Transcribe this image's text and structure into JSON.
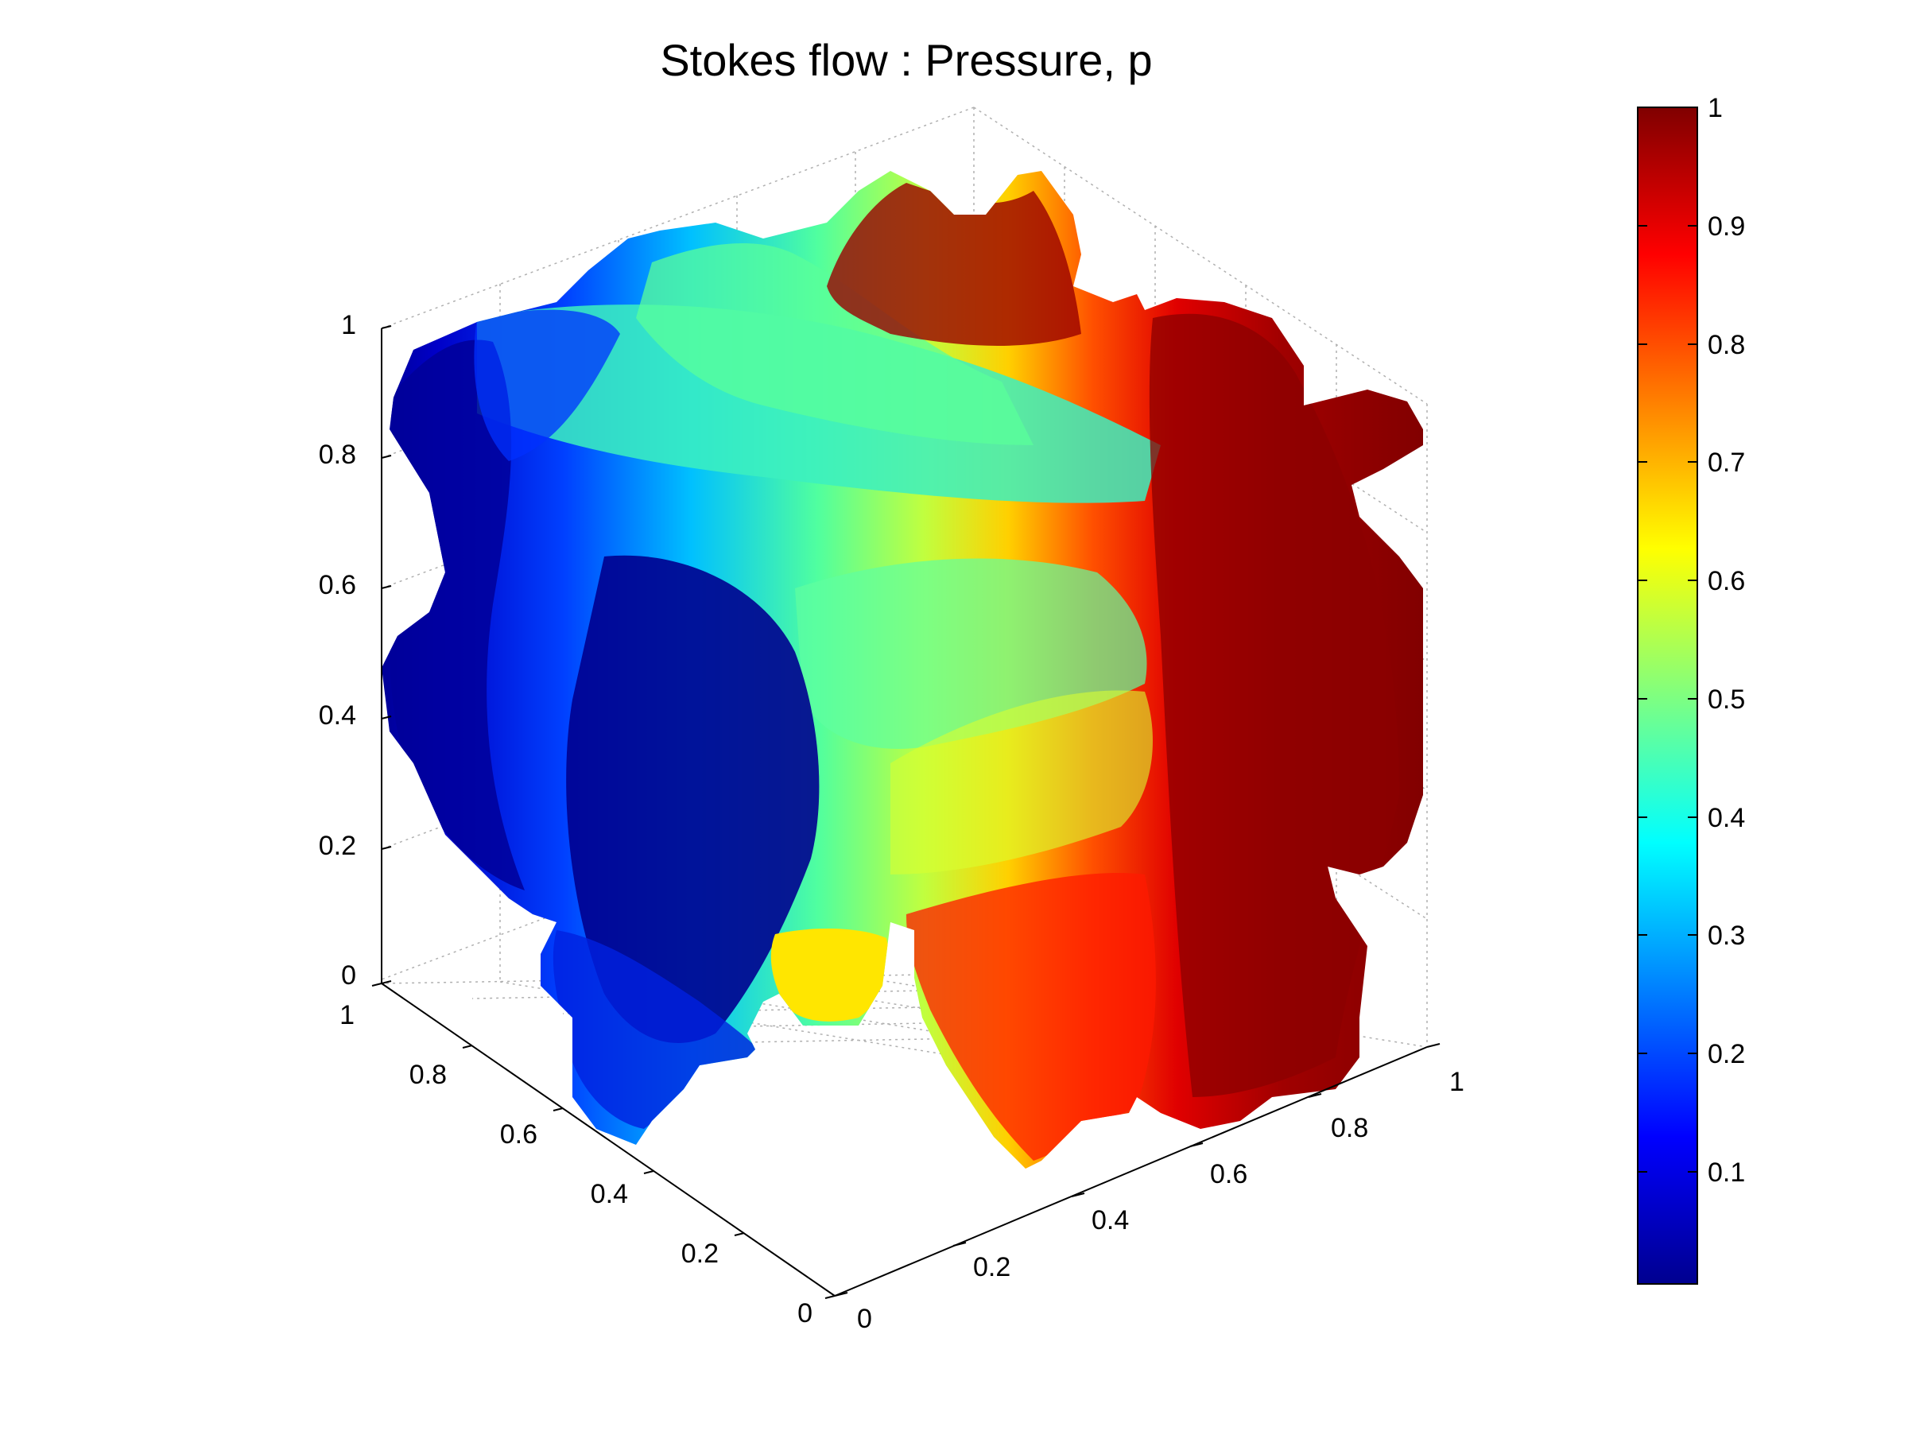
{
  "chart_data": {
    "type": "surface3d",
    "title": "Stokes flow : Pressure, p",
    "xlabel": "",
    "ylabel": "",
    "zlabel": "",
    "xlim": [
      0,
      1
    ],
    "ylim": [
      0,
      1
    ],
    "zlim": [
      0,
      1
    ],
    "x_ticks": [
      "0",
      "0.2",
      "0.4",
      "0.6",
      "0.8",
      "1"
    ],
    "y_ticks": [
      "0",
      "0.2",
      "0.4",
      "0.6",
      "0.8",
      "1"
    ],
    "z_ticks": [
      "0",
      "0.2",
      "0.4",
      "0.6",
      "0.8",
      "1"
    ],
    "grid": true,
    "colormap": "jet",
    "colorbar": {
      "ticks": [
        "0.1",
        "0.2",
        "0.3",
        "0.4",
        "0.5",
        "0.6",
        "0.7",
        "0.8",
        "0.9",
        "1"
      ],
      "range": [
        0.005,
        1
      ],
      "placement": "right"
    },
    "pressure_regions": [
      {
        "y": 0.0,
        "z": 0.55,
        "p": 0.02
      },
      {
        "y": 0.0,
        "z": 0.25,
        "p": 0.05
      },
      {
        "y": 0.05,
        "z": 0.9,
        "p": 0.15
      },
      {
        "y": 0.3,
        "z": 0.95,
        "p": 0.45
      },
      {
        "y": 0.3,
        "z": 0.6,
        "p": 0.25
      },
      {
        "y": 0.45,
        "z": 0.5,
        "p": 0.42
      },
      {
        "y": 0.55,
        "z": 0.35,
        "p": 0.55
      },
      {
        "y": 0.35,
        "z": 0.05,
        "p": 0.65
      },
      {
        "y": 0.65,
        "z": 0.85,
        "p": 0.62
      },
      {
        "y": 0.7,
        "z": 0.45,
        "p": 0.75
      },
      {
        "y": 0.75,
        "z": 0.15,
        "p": 0.9
      },
      {
        "y": 0.8,
        "z": 0.95,
        "p": 1.0
      },
      {
        "y": 0.95,
        "z": 0.5,
        "p": 1.0
      },
      {
        "y": 0.95,
        "z": 0.15,
        "p": 0.98
      }
    ]
  },
  "colors": {
    "jet": [
      "#00008f",
      "#0000ff",
      "#00ffff",
      "#ffff00",
      "#ff0000",
      "#800000"
    ],
    "axis": "#000000",
    "grid": "#b0b0b0"
  }
}
